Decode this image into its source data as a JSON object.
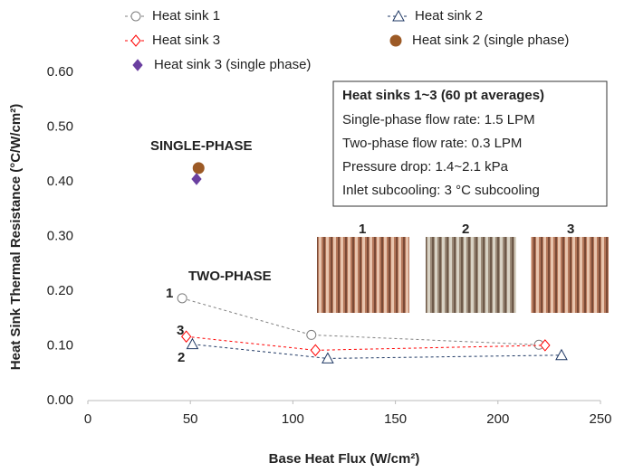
{
  "chart_data": {
    "type": "scatter",
    "x_label": "Base Heat Flux (W/cm²)",
    "y_label": "Heat Sink Thermal Resistance (°C/W/cm²)",
    "xlim": [
      0,
      250
    ],
    "xticks": [
      0,
      50,
      100,
      150,
      200,
      250
    ],
    "ylim": [
      0,
      0.6
    ],
    "yticks": [
      {
        "value": 0,
        "label": "0.00"
      },
      {
        "value": 0.1,
        "label": "0.10"
      },
      {
        "value": 0.2,
        "label": "0.20"
      },
      {
        "value": 0.3,
        "label": "0.30"
      },
      {
        "value": 0.4,
        "label": "0.40"
      },
      {
        "value": 0.5,
        "label": "0.50"
      },
      {
        "value": 0.6,
        "label": "0.60"
      }
    ],
    "grid": false,
    "series": [
      {
        "name": "Heat sink 1",
        "color": "#7f7f7f",
        "marker": "circle",
        "filled": false,
        "dashed": true,
        "x": [
          46,
          109,
          220
        ],
        "values": [
          0.187,
          0.12,
          0.102
        ]
      },
      {
        "name": "Heat sink 2",
        "color": "#1f3864",
        "marker": "triangle",
        "filled": false,
        "dashed": true,
        "x": [
          51,
          117,
          231
        ],
        "values": [
          0.103,
          0.077,
          0.083
        ]
      },
      {
        "name": "Heat sink 3",
        "color": "#ff0000",
        "marker": "diamond",
        "filled": false,
        "dashed": true,
        "x": [
          48,
          111,
          223
        ],
        "values": [
          0.117,
          0.092,
          0.101
        ]
      },
      {
        "name": "Heat sink 2 (single phase)",
        "color": "#9c5a26",
        "marker": "circle",
        "filled": true,
        "dashed": false,
        "x": [
          54
        ],
        "values": [
          0.425
        ]
      },
      {
        "name": "Heat sink 3 (single phase)",
        "color": "#6a3fa0",
        "marker": "diamond",
        "filled": true,
        "dashed": false,
        "x": [
          53
        ],
        "values": [
          0.405
        ]
      }
    ],
    "annotations": [
      {
        "text": "SINGLE-PHASE",
        "color": "#000000"
      },
      {
        "text": "TWO-PHASE",
        "color": "#000000"
      },
      {
        "text": "1",
        "color": "#595959"
      },
      {
        "text": "3",
        "color": "#ff0000"
      },
      {
        "text": "2",
        "color": "#1f3864"
      }
    ],
    "info_box": {
      "title": "Heat sinks 1~3 (60 pt averages)",
      "lines": [
        "Single-phase flow rate: 1.5 LPM",
        "Two-phase flow rate: 0.3 LPM",
        "Pressure drop: 1.4~2.1 kPa",
        "Inlet subcooling: 3 °C subcooling"
      ]
    },
    "photo_labels": [
      {
        "text": "1",
        "color": "#4f6228"
      },
      {
        "text": "2",
        "color": "#1f3864"
      },
      {
        "text": "3",
        "color": "#ff0000"
      }
    ]
  }
}
